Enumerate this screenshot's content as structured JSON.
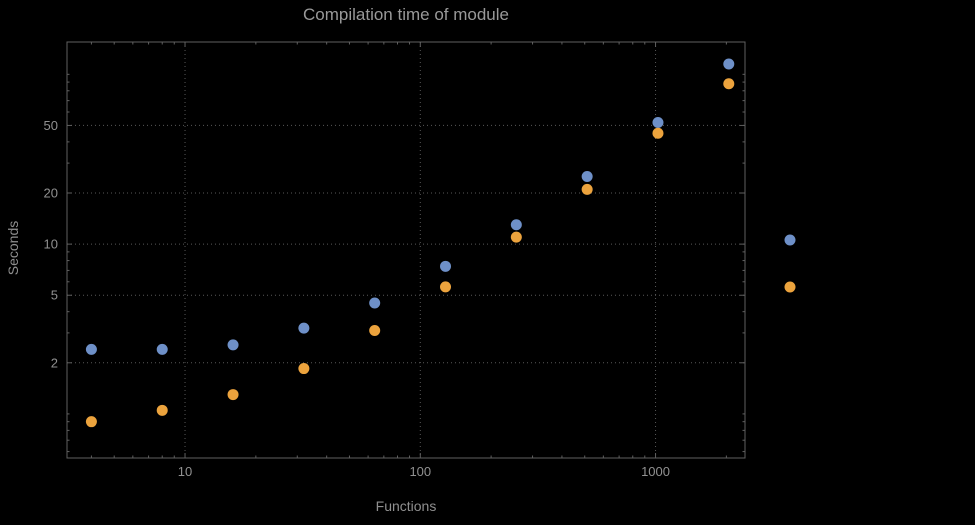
{
  "chart": {
    "title": "Compilation time of module",
    "xlabel": "Functions",
    "ylabel": "Seconds"
  },
  "chart_data": {
    "type": "scatter",
    "title": "Compilation time of module",
    "xlabel": "Functions",
    "ylabel": "Seconds",
    "x_scale": "log",
    "y_scale": "log",
    "x": [
      4,
      8,
      16,
      32,
      64,
      128,
      256,
      512,
      1024,
      2048
    ],
    "series": [
      {
        "name": "blue-series",
        "color": "#6E90C8",
        "values": [
          2.4,
          2.4,
          2.55,
          3.2,
          4.5,
          7.4,
          13,
          25,
          52,
          115
        ]
      },
      {
        "name": "orange-series",
        "color": "#ECA33D",
        "values": [
          0.9,
          1.05,
          1.3,
          1.85,
          3.1,
          5.6,
          11,
          21,
          45,
          88
        ]
      }
    ],
    "x_ticks": [
      10,
      100,
      1000
    ],
    "y_ticks": [
      2,
      5,
      10,
      20,
      50
    ],
    "x_range": [
      3.15,
      2400
    ],
    "y_range": [
      0.55,
      155
    ],
    "grid": "dotted-major",
    "legend": {
      "position": "right-center",
      "markers": [
        "#6E90C8",
        "#ECA33D"
      ]
    }
  },
  "style": {
    "background": "#000000",
    "frame_color": "#606060",
    "grid_color": "#585858",
    "text_color": "#919191"
  }
}
